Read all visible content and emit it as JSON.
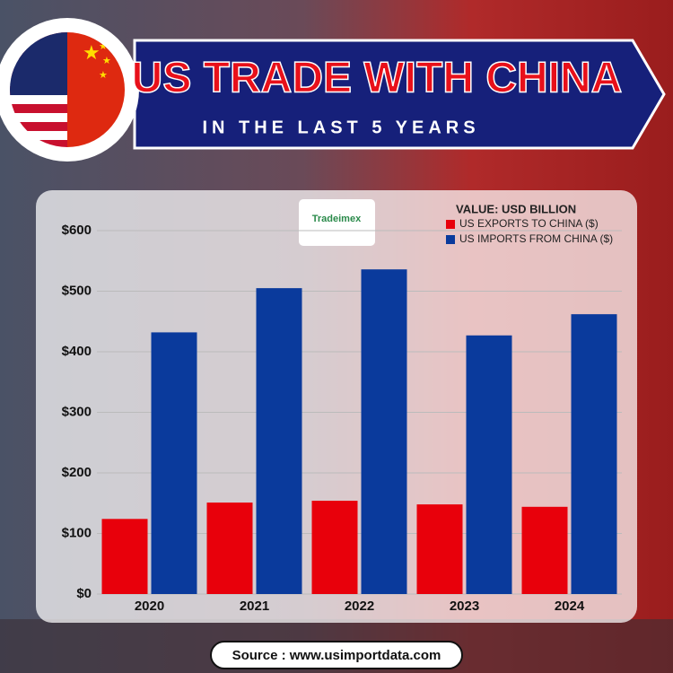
{
  "title": "US TRADE WITH CHINA",
  "subtitle": "IN THE LAST 5 YEARS",
  "logo": "Tradeimex",
  "source": "Source : www.usimportdata.com",
  "chart_data": {
    "type": "bar",
    "legend_title": "VALUE: USD BILLION",
    "legend": "top-right",
    "categories": [
      "2020",
      "2021",
      "2022",
      "2023",
      "2024"
    ],
    "series": [
      {
        "name": "US EXPORTS TO CHINA ($)",
        "color": "#e8000b",
        "values": [
          124,
          151,
          154,
          148,
          144
        ]
      },
      {
        "name": "US IMPORTS FROM CHINA ($)",
        "color": "#0a3a9c",
        "values": [
          432,
          505,
          536,
          427,
          462
        ]
      }
    ],
    "ylim": [
      0,
      600
    ],
    "yticks": [
      {
        "value": 0,
        "label": "$0"
      },
      {
        "value": 100,
        "label": "$100"
      },
      {
        "value": 200,
        "label": "$200"
      },
      {
        "value": 300,
        "label": "$300"
      },
      {
        "value": 400,
        "label": "$400"
      },
      {
        "value": 500,
        "label": "$500"
      },
      {
        "value": 600,
        "label": "$600"
      }
    ],
    "grid": true
  }
}
